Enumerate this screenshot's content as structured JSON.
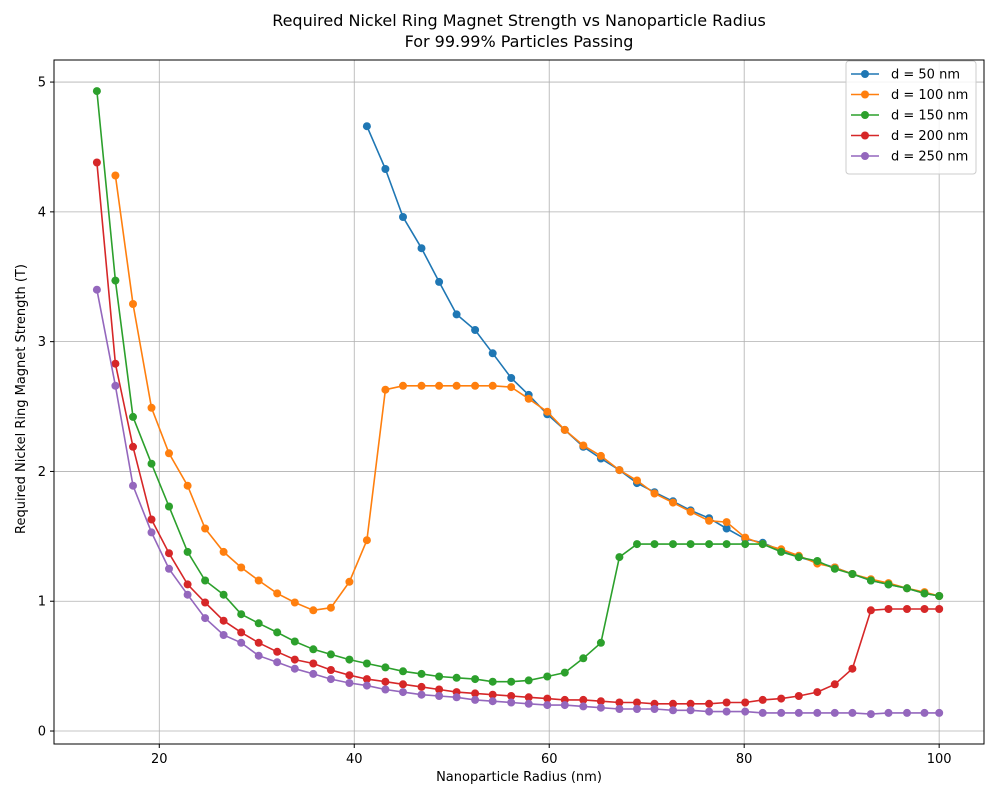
{
  "chart_data": {
    "type": "line",
    "title": "Required Nickel Ring Magnet Strength vs Nanoparticle Radius",
    "subtitle": "For 99.99% Particles Passing",
    "xlabel": "Nanoparticle Radius (nm)",
    "ylabel": "Required Nickel Ring Magnet Strength (T)",
    "xlim": [
      9.2,
      104.6
    ],
    "ylim": [
      -0.1,
      5.17
    ],
    "xticks": [
      20,
      40,
      60,
      80,
      100
    ],
    "yticks": [
      0,
      1,
      2,
      3,
      4,
      5
    ],
    "grid": true,
    "legend_position": "top-right",
    "marker": "circle",
    "x": [
      13.6,
      15.5,
      17.3,
      19.2,
      21.0,
      22.9,
      24.7,
      26.6,
      28.4,
      30.2,
      32.1,
      33.9,
      35.8,
      37.6,
      39.5,
      41.3,
      43.2,
      45.0,
      46.9,
      48.7,
      50.5,
      52.4,
      54.2,
      56.1,
      57.9,
      59.8,
      61.6,
      63.5,
      65.3,
      67.2,
      69.0,
      70.8,
      72.7,
      74.5,
      76.4,
      78.2,
      80.1,
      81.9,
      83.8,
      85.6,
      87.5,
      89.3,
      91.1,
      93.0,
      94.8,
      96.7,
      98.5,
      100.0
    ],
    "series": [
      {
        "name": "d = 50 nm",
        "color": "#1f77b4",
        "values": [
          null,
          null,
          null,
          null,
          null,
          null,
          null,
          null,
          null,
          null,
          null,
          null,
          null,
          null,
          null,
          4.66,
          4.33,
          3.96,
          3.72,
          3.46,
          3.21,
          3.09,
          2.91,
          2.72,
          2.59,
          2.44,
          2.32,
          2.19,
          2.1,
          2.01,
          1.91,
          1.84,
          1.77,
          1.7,
          1.64,
          1.56,
          1.48,
          1.45,
          1.39,
          1.34,
          1.3,
          1.26,
          1.21,
          1.16,
          1.13,
          1.1,
          1.06,
          1.04
        ]
      },
      {
        "name": "d = 100 nm",
        "color": "#ff7f0e",
        "values": [
          null,
          4.28,
          3.29,
          2.49,
          2.14,
          1.89,
          1.56,
          1.38,
          1.26,
          1.16,
          1.06,
          0.99,
          0.93,
          0.95,
          1.15,
          1.47,
          2.63,
          2.66,
          2.66,
          2.66,
          2.66,
          2.66,
          2.66,
          2.65,
          2.56,
          2.46,
          2.32,
          2.2,
          2.12,
          2.01,
          1.93,
          1.83,
          1.76,
          1.69,
          1.62,
          1.61,
          1.49,
          1.44,
          1.4,
          1.35,
          1.29,
          1.26,
          1.21,
          1.17,
          1.14,
          1.1,
          1.07,
          1.04
        ]
      },
      {
        "name": "d = 150 nm",
        "color": "#2ca02c",
        "values": [
          4.93,
          3.47,
          2.42,
          2.06,
          1.73,
          1.38,
          1.16,
          1.05,
          0.9,
          0.83,
          0.76,
          0.69,
          0.63,
          0.59,
          0.55,
          0.52,
          0.49,
          0.46,
          0.44,
          0.42,
          0.41,
          0.4,
          0.38,
          0.38,
          0.39,
          0.42,
          0.45,
          0.56,
          0.68,
          1.34,
          1.44,
          1.44,
          1.44,
          1.44,
          1.44,
          1.44,
          1.44,
          1.44,
          1.38,
          1.34,
          1.31,
          1.25,
          1.21,
          1.16,
          1.13,
          1.1,
          1.06,
          1.04
        ]
      },
      {
        "name": "d = 200 nm",
        "color": "#d62728",
        "values": [
          4.38,
          2.83,
          2.19,
          1.63,
          1.37,
          1.13,
          0.99,
          0.85,
          0.76,
          0.68,
          0.61,
          0.55,
          0.52,
          0.47,
          0.43,
          0.4,
          0.38,
          0.36,
          0.34,
          0.32,
          0.3,
          0.29,
          0.28,
          0.27,
          0.26,
          0.25,
          0.24,
          0.24,
          0.23,
          0.22,
          0.22,
          0.21,
          0.21,
          0.21,
          0.21,
          0.22,
          0.22,
          0.24,
          0.25,
          0.27,
          0.3,
          0.36,
          0.48,
          0.93,
          0.94,
          0.94,
          0.94,
          0.94
        ]
      },
      {
        "name": "d = 250 nm",
        "color": "#9467bd",
        "values": [
          3.4,
          2.66,
          1.89,
          1.53,
          1.25,
          1.05,
          0.87,
          0.74,
          0.68,
          0.58,
          0.53,
          0.48,
          0.44,
          0.4,
          0.37,
          0.35,
          0.32,
          0.3,
          0.28,
          0.27,
          0.26,
          0.24,
          0.23,
          0.22,
          0.21,
          0.2,
          0.2,
          0.19,
          0.18,
          0.17,
          0.17,
          0.17,
          0.16,
          0.16,
          0.15,
          0.15,
          0.15,
          0.14,
          0.14,
          0.14,
          0.14,
          0.14,
          0.14,
          0.13,
          0.14,
          0.14,
          0.14,
          0.14
        ]
      }
    ]
  }
}
